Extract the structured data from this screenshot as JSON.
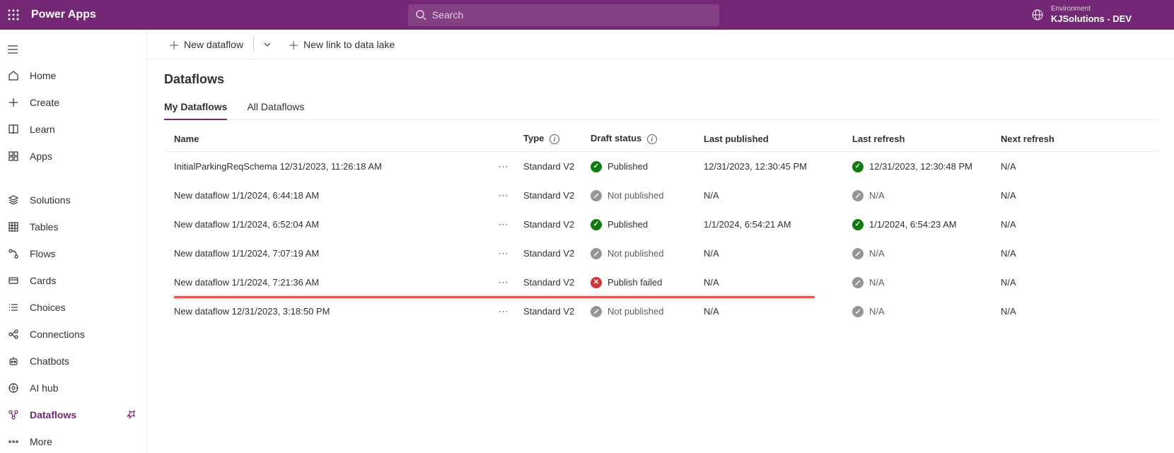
{
  "header": {
    "app_title": "Power Apps",
    "search_placeholder": "Search",
    "environment_label": "Environment",
    "environment_name": "KJSolutions - DEV"
  },
  "sidebar": {
    "items": [
      {
        "icon": "home",
        "label": "Home",
        "active": false
      },
      {
        "icon": "plus",
        "label": "Create",
        "active": false
      },
      {
        "icon": "book",
        "label": "Learn",
        "active": false
      },
      {
        "icon": "grid",
        "label": "Apps",
        "active": false
      },
      {
        "gap": true
      },
      {
        "icon": "stack",
        "label": "Solutions",
        "active": false
      },
      {
        "icon": "table",
        "label": "Tables",
        "active": false
      },
      {
        "icon": "flow",
        "label": "Flows",
        "active": false
      },
      {
        "icon": "card",
        "label": "Cards",
        "active": false
      },
      {
        "icon": "list",
        "label": "Choices",
        "active": false
      },
      {
        "icon": "conn",
        "label": "Connections",
        "active": false
      },
      {
        "icon": "bot",
        "label": "Chatbots",
        "active": false
      },
      {
        "icon": "ai",
        "label": "AI hub",
        "active": false
      },
      {
        "icon": "dataflow",
        "label": "Dataflows",
        "active": true,
        "pinned": true
      },
      {
        "icon": "more",
        "label": "More",
        "active": false
      }
    ]
  },
  "commands": {
    "new_dataflow": "New dataflow",
    "new_link": "New link to data lake"
  },
  "page": {
    "title": "Dataflows",
    "tabs": [
      {
        "label": "My Dataflows",
        "active": true
      },
      {
        "label": "All Dataflows",
        "active": false
      }
    ]
  },
  "table": {
    "headers": {
      "name": "Name",
      "type": "Type",
      "draft_status": "Draft status",
      "last_published": "Last published",
      "last_refresh": "Last refresh",
      "next_refresh": "Next refresh"
    },
    "rows": [
      {
        "name": "InitialParkingReqSchema 12/31/2023, 11:26:18 AM",
        "type": "Standard V2",
        "status": "Published",
        "status_kind": "published",
        "last_published": "12/31/2023, 12:30:45 PM",
        "last_refresh": "12/31/2023, 12:30:48 PM",
        "refresh_kind": "published",
        "next_refresh": "N/A",
        "highlighted": false
      },
      {
        "name": "New dataflow 1/1/2024, 6:44:18 AM",
        "type": "Standard V2",
        "status": "Not published",
        "status_kind": "notpublished",
        "last_published": "N/A",
        "last_refresh": "N/A",
        "refresh_kind": "notpublished",
        "next_refresh": "N/A",
        "highlighted": false
      },
      {
        "name": "New dataflow 1/1/2024, 6:52:04 AM",
        "type": "Standard V2",
        "status": "Published",
        "status_kind": "published",
        "last_published": "1/1/2024, 6:54:21 AM",
        "last_refresh": "1/1/2024, 6:54:23 AM",
        "refresh_kind": "published",
        "next_refresh": "N/A",
        "highlighted": false
      },
      {
        "name": "New dataflow 1/1/2024, 7:07:19 AM",
        "type": "Standard V2",
        "status": "Not published",
        "status_kind": "notpublished",
        "last_published": "N/A",
        "last_refresh": "N/A",
        "refresh_kind": "notpublished",
        "next_refresh": "N/A",
        "highlighted": false
      },
      {
        "name": "New dataflow 1/1/2024, 7:21:36 AM",
        "type": "Standard V2",
        "status": "Publish failed",
        "status_kind": "failed",
        "last_published": "N/A",
        "last_refresh": "N/A",
        "refresh_kind": "notpublished",
        "next_refresh": "N/A",
        "highlighted": true
      },
      {
        "name": "New dataflow 12/31/2023, 3:18:50 PM",
        "type": "Standard V2",
        "status": "Not published",
        "status_kind": "notpublished",
        "last_published": "N/A",
        "last_refresh": "N/A",
        "refresh_kind": "notpublished",
        "next_refresh": "N/A",
        "highlighted": false
      }
    ]
  },
  "colors": {
    "brand": "#742774",
    "highlight": "#ff4d3d"
  }
}
